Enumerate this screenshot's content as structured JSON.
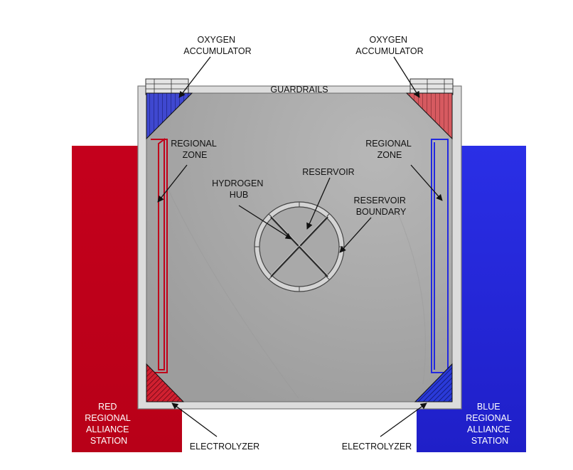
{
  "labels": {
    "oxygen_accumulator_left": [
      "OXYGEN",
      "ACCUMULATOR"
    ],
    "oxygen_accumulator_right": [
      "OXYGEN",
      "ACCUMULATOR"
    ],
    "guardrails": "GUARDRAILS",
    "regional_zone_left": [
      "REGIONAL",
      "ZONE"
    ],
    "regional_zone_right": [
      "REGIONAL",
      "ZONE"
    ],
    "hydrogen_hub": [
      "HYDROGEN",
      "HUB"
    ],
    "reservoir": "RESERVOIR",
    "reservoir_boundary": [
      "RESERVOIR",
      "BOUNDARY"
    ],
    "red_station": [
      "RED",
      "REGIONAL",
      "ALLIANCE",
      "STATION"
    ],
    "blue_station": [
      "BLUE",
      "REGIONAL",
      "ALLIANCE",
      "STATION"
    ],
    "electrolyzer_left": "ELECTROLYZER",
    "electrolyzer_right": "ELECTROLYZER"
  },
  "colors": {
    "red_alliance": "#c0001a",
    "blue_alliance": "#2229e0",
    "field": "#a7a7a7",
    "guardrail": "#d9d9d9"
  }
}
